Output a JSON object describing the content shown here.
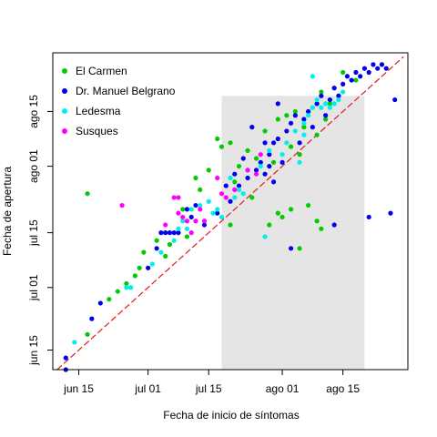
{
  "chart_data": {
    "type": "scatter",
    "xlabel": "Fecha de inicio de síntomas",
    "ylabel": "Fecha de apertura",
    "x_ticks": [
      {
        "date": "2020-06-15",
        "label": "jun 15"
      },
      {
        "date": "2020-07-01",
        "label": "jul 01"
      },
      {
        "date": "2020-07-15",
        "label": "jul 15"
      },
      {
        "date": "2020-08-01",
        "label": "ago 01"
      },
      {
        "date": "2020-08-15",
        "label": "ago 15"
      }
    ],
    "y_ticks": [
      {
        "date": "2020-06-15",
        "label": "jun 15"
      },
      {
        "date": "2020-07-01",
        "label": "jul 01"
      },
      {
        "date": "2020-07-15",
        "label": "jul 15"
      },
      {
        "date": "2020-08-01",
        "label": "ago 01"
      },
      {
        "date": "2020-08-15",
        "label": "ago 15"
      }
    ],
    "xlim": [
      "2020-06-09",
      "2020-08-30"
    ],
    "ylim": [
      "2020-06-10",
      "2020-08-30"
    ],
    "shaded_x_range": [
      "2020-07-18",
      "2020-08-20"
    ],
    "shade_color": "#e5e5e5",
    "reference_line": {
      "style": "dashed",
      "color": "#e41a1c",
      "slope": 1
    },
    "legend": {
      "position": "top-left"
    },
    "series": [
      {
        "name": "El Carmen",
        "color": "#00cc00",
        "points": [
          [
            "2020-06-17",
            "2020-07-25"
          ],
          [
            "2020-06-22",
            "2020-06-28"
          ],
          [
            "2020-06-17",
            "2020-06-19"
          ],
          [
            "2020-06-24",
            "2020-06-30"
          ],
          [
            "2020-06-26",
            "2020-07-02"
          ],
          [
            "2020-06-27",
            "2020-07-01"
          ],
          [
            "2020-06-28",
            "2020-07-04"
          ],
          [
            "2020-06-30",
            "2020-07-10"
          ],
          [
            "2020-06-29",
            "2020-07-06"
          ],
          [
            "2020-07-03",
            "2020-07-13"
          ],
          [
            "2020-07-05",
            "2020-07-09"
          ],
          [
            "2020-07-06",
            "2020-07-12"
          ],
          [
            "2020-07-09",
            "2020-07-21"
          ],
          [
            "2020-07-10",
            "2020-07-14"
          ],
          [
            "2020-07-12",
            "2020-07-29"
          ],
          [
            "2020-07-13",
            "2020-07-26"
          ],
          [
            "2020-07-15",
            "2020-07-31"
          ],
          [
            "2020-07-17",
            "2020-08-08"
          ],
          [
            "2020-07-18",
            "2020-08-06"
          ],
          [
            "2020-07-20",
            "2020-08-07"
          ],
          [
            "2020-07-20",
            "2020-07-17"
          ],
          [
            "2020-07-21",
            "2020-07-28"
          ],
          [
            "2020-07-22",
            "2020-08-01"
          ],
          [
            "2020-07-24",
            "2020-08-05"
          ],
          [
            "2020-07-26",
            "2020-08-03"
          ],
          [
            "2020-07-28",
            "2020-08-10"
          ],
          [
            "2020-07-30",
            "2020-08-02"
          ],
          [
            "2020-07-31",
            "2020-08-13"
          ],
          [
            "2020-08-02",
            "2020-08-14"
          ],
          [
            "2020-08-03",
            "2020-08-06"
          ],
          [
            "2020-08-04",
            "2020-08-15"
          ],
          [
            "2020-08-05",
            "2020-08-04"
          ],
          [
            "2020-08-06",
            "2020-08-11"
          ],
          [
            "2020-08-08",
            "2020-08-16"
          ],
          [
            "2020-08-09",
            "2020-08-09"
          ],
          [
            "2020-08-10",
            "2020-08-20"
          ],
          [
            "2020-08-11",
            "2020-08-13"
          ],
          [
            "2020-08-13",
            "2020-08-21"
          ],
          [
            "2020-08-15",
            "2020-08-25"
          ],
          [
            "2020-08-18",
            "2020-08-23"
          ],
          [
            "2020-07-31",
            "2020-07-20"
          ],
          [
            "2020-08-01",
            "2020-07-19"
          ],
          [
            "2020-08-03",
            "2020-07-21"
          ],
          [
            "2020-08-05",
            "2020-07-11"
          ],
          [
            "2020-08-07",
            "2020-07-22"
          ],
          [
            "2020-08-09",
            "2020-07-18"
          ],
          [
            "2020-08-10",
            "2020-07-16"
          ],
          [
            "2020-07-29",
            "2020-07-17"
          ],
          [
            "2020-07-25",
            "2020-07-24"
          ],
          [
            "2020-08-12",
            "2020-08-17"
          ]
        ]
      },
      {
        "name": "Dr. Manuel Belgrano",
        "color": "#0000ee",
        "points": [
          [
            "2020-06-12",
            "2020-06-13"
          ],
          [
            "2020-06-12",
            "2020-06-10"
          ],
          [
            "2020-06-18",
            "2020-06-23"
          ],
          [
            "2020-06-20",
            "2020-06-27"
          ],
          [
            "2020-07-01",
            "2020-07-06"
          ],
          [
            "2020-07-03",
            "2020-07-11"
          ],
          [
            "2020-07-04",
            "2020-07-15"
          ],
          [
            "2020-07-05",
            "2020-07-15"
          ],
          [
            "2020-07-06",
            "2020-07-15"
          ],
          [
            "2020-07-07",
            "2020-07-15"
          ],
          [
            "2020-07-08",
            "2020-07-15"
          ],
          [
            "2020-07-10",
            "2020-07-21"
          ],
          [
            "2020-07-11",
            "2020-07-19"
          ],
          [
            "2020-07-12",
            "2020-07-22"
          ],
          [
            "2020-07-14",
            "2020-07-17"
          ],
          [
            "2020-07-17",
            "2020-07-20"
          ],
          [
            "2020-07-19",
            "2020-07-27"
          ],
          [
            "2020-07-20",
            "2020-07-23"
          ],
          [
            "2020-07-21",
            "2020-07-30"
          ],
          [
            "2020-07-22",
            "2020-07-27"
          ],
          [
            "2020-07-23",
            "2020-08-03"
          ],
          [
            "2020-07-24",
            "2020-07-29"
          ],
          [
            "2020-07-25",
            "2020-08-11"
          ],
          [
            "2020-07-26",
            "2020-07-31"
          ],
          [
            "2020-07-27",
            "2020-08-02"
          ],
          [
            "2020-07-28",
            "2020-07-30"
          ],
          [
            "2020-07-29",
            "2020-08-04"
          ],
          [
            "2020-07-30",
            "2020-08-07"
          ],
          [
            "2020-07-31",
            "2020-08-08"
          ],
          [
            "2020-08-01",
            "2020-08-02"
          ],
          [
            "2020-08-02",
            "2020-08-10"
          ],
          [
            "2020-08-03",
            "2020-08-12"
          ],
          [
            "2020-08-04",
            "2020-08-14"
          ],
          [
            "2020-08-05",
            "2020-08-07"
          ],
          [
            "2020-08-06",
            "2020-08-13"
          ],
          [
            "2020-08-07",
            "2020-08-15"
          ],
          [
            "2020-08-08",
            "2020-08-11"
          ],
          [
            "2020-08-09",
            "2020-08-17"
          ],
          [
            "2020-08-10",
            "2020-08-19"
          ],
          [
            "2020-08-11",
            "2020-08-14"
          ],
          [
            "2020-08-12",
            "2020-08-18"
          ],
          [
            "2020-08-13",
            "2020-08-21"
          ],
          [
            "2020-08-14",
            "2020-08-19"
          ],
          [
            "2020-08-15",
            "2020-08-22"
          ],
          [
            "2020-08-16",
            "2020-08-24"
          ],
          [
            "2020-08-17",
            "2020-08-23"
          ],
          [
            "2020-08-18",
            "2020-08-25"
          ],
          [
            "2020-08-19",
            "2020-08-24"
          ],
          [
            "2020-08-20",
            "2020-08-26"
          ],
          [
            "2020-08-21",
            "2020-08-25"
          ],
          [
            "2020-08-22",
            "2020-08-27"
          ],
          [
            "2020-08-23",
            "2020-08-26"
          ],
          [
            "2020-08-24",
            "2020-08-27"
          ],
          [
            "2020-08-25",
            "2020-08-26"
          ],
          [
            "2020-08-27",
            "2020-08-18"
          ],
          [
            "2020-08-26",
            "2020-07-20"
          ],
          [
            "2020-08-03",
            "2020-07-11"
          ],
          [
            "2020-08-13",
            "2020-07-17"
          ],
          [
            "2020-08-21",
            "2020-07-19"
          ],
          [
            "2020-07-31",
            "2020-08-17"
          ],
          [
            "2020-07-28",
            "2020-08-07"
          ],
          [
            "2020-07-30",
            "2020-07-28"
          ],
          [
            "2020-07-29",
            "2020-08-01"
          ]
        ]
      },
      {
        "name": "Ledesma",
        "color": "#00eeee",
        "points": [
          [
            "2020-06-14",
            "2020-06-17"
          ],
          [
            "2020-06-26",
            "2020-07-01"
          ],
          [
            "2020-06-27",
            "2020-07-01"
          ],
          [
            "2020-07-02",
            "2020-07-07"
          ],
          [
            "2020-07-04",
            "2020-07-10"
          ],
          [
            "2020-07-07",
            "2020-07-13"
          ],
          [
            "2020-07-08",
            "2020-07-16"
          ],
          [
            "2020-07-09",
            "2020-07-18"
          ],
          [
            "2020-07-10",
            "2020-07-16"
          ],
          [
            "2020-07-11",
            "2020-07-21"
          ],
          [
            "2020-07-13",
            "2020-07-22"
          ],
          [
            "2020-07-15",
            "2020-07-23"
          ],
          [
            "2020-07-16",
            "2020-07-20"
          ],
          [
            "2020-07-17",
            "2020-07-21"
          ],
          [
            "2020-07-18",
            "2020-07-19"
          ],
          [
            "2020-07-20",
            "2020-07-29"
          ],
          [
            "2020-07-22",
            "2020-07-26"
          ],
          [
            "2020-07-24",
            "2020-07-31"
          ],
          [
            "2020-07-27",
            "2020-08-01"
          ],
          [
            "2020-07-29",
            "2020-08-05"
          ],
          [
            "2020-08-01",
            "2020-08-04"
          ],
          [
            "2020-08-02",
            "2020-08-07"
          ],
          [
            "2020-08-04",
            "2020-08-10"
          ],
          [
            "2020-08-06",
            "2020-08-12"
          ],
          [
            "2020-08-07",
            "2020-08-14"
          ],
          [
            "2020-08-08",
            "2020-08-16"
          ],
          [
            "2020-08-09",
            "2020-08-18"
          ],
          [
            "2020-08-10",
            "2020-08-16"
          ],
          [
            "2020-08-11",
            "2020-08-17"
          ],
          [
            "2020-08-12",
            "2020-08-16"
          ],
          [
            "2020-08-13",
            "2020-08-17"
          ],
          [
            "2020-08-14",
            "2020-08-18"
          ],
          [
            "2020-08-15",
            "2020-08-20"
          ],
          [
            "2020-08-08",
            "2020-08-24"
          ],
          [
            "2020-07-28",
            "2020-07-14"
          ],
          [
            "2020-08-06",
            "2020-08-09"
          ],
          [
            "2020-08-05",
            "2020-08-02"
          ],
          [
            "2020-07-23",
            "2020-07-25"
          ],
          [
            "2020-07-21",
            "2020-07-24"
          ]
        ]
      },
      {
        "name": "Susques",
        "color": "#ff00ff",
        "points": [
          [
            "2020-06-25",
            "2020-07-22"
          ],
          [
            "2020-07-07",
            "2020-07-24"
          ],
          [
            "2020-07-08",
            "2020-07-24"
          ],
          [
            "2020-07-08",
            "2020-07-20"
          ],
          [
            "2020-07-09",
            "2020-07-19"
          ],
          [
            "2020-07-05",
            "2020-07-17"
          ],
          [
            "2020-07-11",
            "2020-07-15"
          ],
          [
            "2020-07-12",
            "2020-07-18"
          ],
          [
            "2020-07-13",
            "2020-07-21"
          ],
          [
            "2020-07-17",
            "2020-07-29"
          ],
          [
            "2020-07-18",
            "2020-07-25"
          ],
          [
            "2020-07-19",
            "2020-07-24"
          ],
          [
            "2020-07-21",
            "2020-07-26"
          ],
          [
            "2020-07-24",
            "2020-07-31"
          ],
          [
            "2020-07-27",
            "2020-08-04"
          ],
          [
            "2020-07-26",
            "2020-07-30"
          ],
          [
            "2020-07-14",
            "2020-07-18"
          ],
          [
            "2020-07-10",
            "2020-07-18"
          ]
        ]
      }
    ]
  }
}
